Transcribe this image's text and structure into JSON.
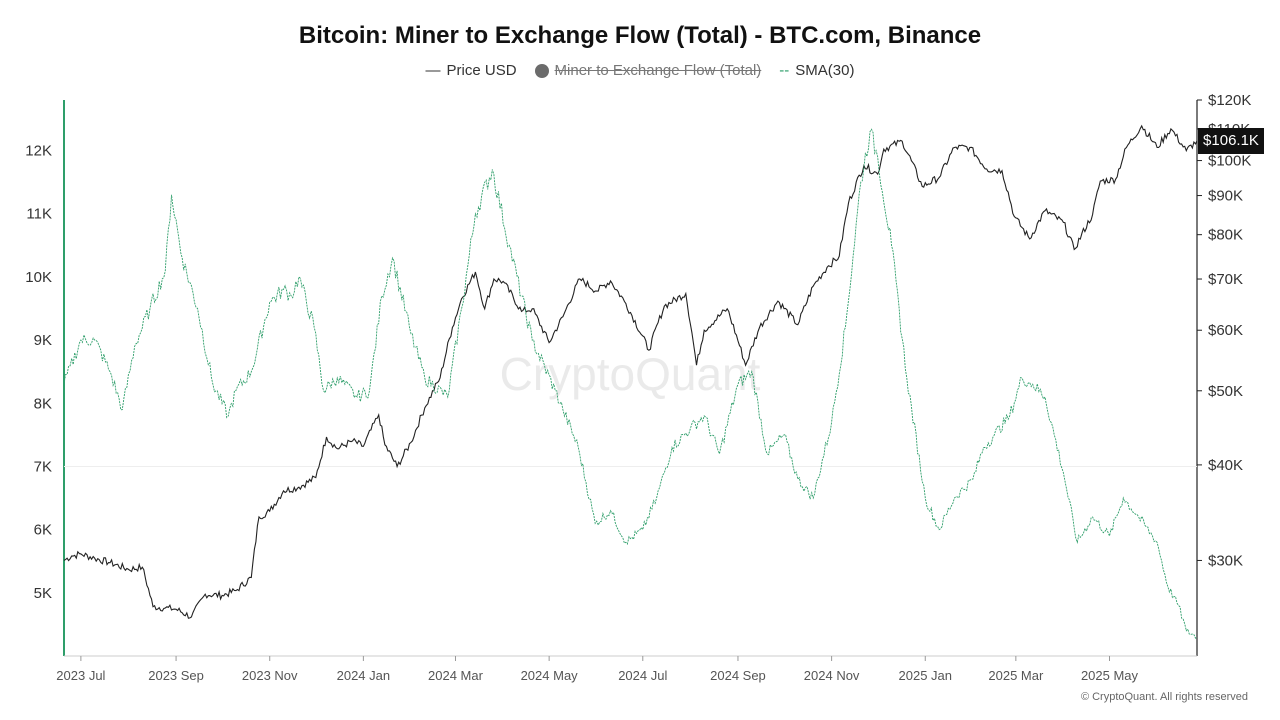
{
  "chart_data": {
    "type": "line",
    "title": "Bitcoin: Miner to Exchange Flow (Total) - BTC.com, Binance",
    "legend": {
      "placement": "top-center",
      "items": [
        {
          "name": "Price USD",
          "marker": "line",
          "color": "#222222",
          "hidden": false
        },
        {
          "name": "Miner to Exchange Flow (Total)",
          "marker": "dot",
          "color": "#6b6b6b",
          "hidden": true
        },
        {
          "name": "SMA(30)",
          "marker": "dash",
          "color": "#2e9e6a",
          "hidden": false
        }
      ]
    },
    "x_axis": {
      "type": "date",
      "range": [
        "2023-06-20",
        "2025-06-27"
      ],
      "tick_labels": [
        "2023 Jul",
        "2023 Sep",
        "2023 Nov",
        "2024 Jan",
        "2024 Mar",
        "2024 May",
        "2024 Jul",
        "2024 Sep",
        "2024 Nov",
        "2025 Jan",
        "2025 Mar",
        "2025 May"
      ],
      "tick_dates": [
        "2023-07-01",
        "2023-09-01",
        "2023-11-01",
        "2024-01-01",
        "2024-03-01",
        "2024-05-01",
        "2024-07-01",
        "2024-09-01",
        "2024-11-01",
        "2025-01-01",
        "2025-03-01",
        "2025-05-01"
      ]
    },
    "y_left": {
      "range": [
        4000,
        12800
      ],
      "ticks": [
        5000,
        6000,
        7000,
        8000,
        9000,
        10000,
        11000,
        12000
      ],
      "tick_labels": [
        "5K",
        "6K",
        "7K",
        "8K",
        "9K",
        "10K",
        "11K",
        "12K"
      ]
    },
    "y_right": {
      "scale": "log",
      "range": [
        22500,
        120000
      ],
      "ticks": [
        30000,
        40000,
        50000,
        60000,
        70000,
        80000,
        90000,
        100000,
        110000,
        120000
      ],
      "tick_labels": [
        "$30K",
        "$40K",
        "$50K",
        "$60K",
        "$70K",
        "$80K",
        "$90K",
        "$100K",
        "$110K",
        "$120K"
      ],
      "last_value_label": "$106.1K"
    },
    "grid": false,
    "series": [
      {
        "name": "Price USD",
        "axis": "right",
        "color": "#222222",
        "x": [
          "2023-06-20",
          "2023-06-25",
          "2023-07-01",
          "2023-07-10",
          "2023-07-20",
          "2023-08-01",
          "2023-08-10",
          "2023-08-17",
          "2023-08-25",
          "2023-09-01",
          "2023-09-11",
          "2023-09-20",
          "2023-10-01",
          "2023-10-10",
          "2023-10-20",
          "2023-10-25",
          "2023-11-01",
          "2023-11-10",
          "2023-11-20",
          "2023-12-01",
          "2023-12-08",
          "2023-12-15",
          "2023-12-25",
          "2024-01-01",
          "2024-01-11",
          "2024-01-15",
          "2024-01-23",
          "2024-02-01",
          "2024-02-10",
          "2024-02-20",
          "2024-02-28",
          "2024-03-05",
          "2024-03-14",
          "2024-03-20",
          "2024-03-26",
          "2024-04-01",
          "2024-04-13",
          "2024-04-20",
          "2024-05-01",
          "2024-05-10",
          "2024-05-21",
          "2024-06-01",
          "2024-06-10",
          "2024-06-20",
          "2024-07-05",
          "2024-07-15",
          "2024-07-29",
          "2024-08-05",
          "2024-08-10",
          "2024-08-25",
          "2024-09-06",
          "2024-09-15",
          "2024-09-27",
          "2024-10-10",
          "2024-10-20",
          "2024-10-29",
          "2024-11-06",
          "2024-11-12",
          "2024-11-22",
          "2024-12-01",
          "2024-12-05",
          "2024-12-17",
          "2024-12-30",
          "2025-01-10",
          "2025-01-20",
          "2025-01-30",
          "2025-02-10",
          "2025-02-20",
          "2025-02-28",
          "2025-03-10",
          "2025-03-20",
          "2025-04-01",
          "2025-04-08",
          "2025-04-20",
          "2025-04-25",
          "2025-05-05",
          "2025-05-12",
          "2025-05-22",
          "2025-06-01",
          "2025-06-10",
          "2025-06-20",
          "2025-06-27"
        ],
        "y": [
          30000,
          30400,
          30600,
          30200,
          29800,
          29200,
          29400,
          26100,
          26000,
          25900,
          25300,
          27100,
          27000,
          27400,
          28500,
          34200,
          34800,
          37000,
          37400,
          38500,
          43500,
          42000,
          43000,
          42300,
          46500,
          42500,
          39800,
          42800,
          47500,
          52000,
          60500,
          66000,
          71500,
          64000,
          70000,
          69500,
          63500,
          64000,
          57800,
          62500,
          70000,
          67500,
          69600,
          65000,
          56500,
          64500,
          67000,
          54000,
          60000,
          64000,
          54000,
          60500,
          65500,
          61000,
          68500,
          72500,
          75000,
          88000,
          98500,
          96000,
          103500,
          106000,
          92500,
          95000,
          104000,
          104000,
          97500,
          97000,
          84500,
          79000,
          86000,
          83000,
          76500,
          85000,
          94000,
          94500,
          104000,
          111000,
          104000,
          110000,
          103000,
          106100
        ]
      },
      {
        "name": "SMA(30)",
        "axis": "left",
        "color": "#2e9e6a",
        "x": [
          "2023-06-20",
          "2023-07-01",
          "2023-07-10",
          "2023-07-20",
          "2023-07-28",
          "2023-08-05",
          "2023-08-15",
          "2023-08-25",
          "2023-08-29",
          "2023-09-05",
          "2023-09-15",
          "2023-09-25",
          "2023-10-05",
          "2023-10-10",
          "2023-10-20",
          "2023-11-01",
          "2023-11-10",
          "2023-11-15",
          "2023-11-20",
          "2023-11-30",
          "2023-12-06",
          "2023-12-15",
          "2023-12-28",
          "2024-01-05",
          "2024-01-13",
          "2024-01-20",
          "2024-02-01",
          "2024-02-10",
          "2024-02-25",
          "2024-03-05",
          "2024-03-14",
          "2024-03-25",
          "2024-04-05",
          "2024-04-20",
          "2024-05-05",
          "2024-05-10",
          "2024-05-20",
          "2024-05-31",
          "2024-06-10",
          "2024-06-20",
          "2024-07-01",
          "2024-07-10",
          "2024-07-20",
          "2024-08-01",
          "2024-08-10",
          "2024-08-20",
          "2024-09-01",
          "2024-09-10",
          "2024-09-20",
          "2024-10-01",
          "2024-10-10",
          "2024-10-20",
          "2024-11-01",
          "2024-11-10",
          "2024-11-20",
          "2024-11-26",
          "2024-12-01",
          "2024-12-10",
          "2024-12-20",
          "2025-01-01",
          "2025-01-10",
          "2025-01-20",
          "2025-02-01",
          "2025-02-08",
          "2025-02-15",
          "2025-02-25",
          "2025-03-05",
          "2025-03-12",
          "2025-03-20",
          "2025-04-01",
          "2025-04-10",
          "2025-04-20",
          "2025-05-01",
          "2025-05-10",
          "2025-05-20",
          "2025-06-01",
          "2025-06-08",
          "2025-06-15",
          "2025-06-20",
          "2025-06-27"
        ],
        "y": [
          8300,
          9000,
          9000,
          8500,
          7900,
          8900,
          9500,
          10100,
          11300,
          10300,
          9500,
          8300,
          7800,
          8200,
          8500,
          9600,
          9800,
          9700,
          10000,
          9200,
          8200,
          8400,
          8100,
          8200,
          9700,
          10300,
          9100,
          8400,
          8100,
          9500,
          11000,
          11700,
          10500,
          9000,
          8200,
          7900,
          7300,
          6100,
          6300,
          5800,
          6000,
          6500,
          7300,
          7600,
          7800,
          7200,
          8300,
          8500,
          7200,
          7500,
          6800,
          6500,
          7700,
          9200,
          11500,
          12300,
          11900,
          10500,
          8400,
          6500,
          6000,
          6500,
          6800,
          7300,
          7500,
          7800,
          8400,
          8300,
          8100,
          6900,
          5800,
          6200,
          5900,
          6500,
          6200,
          5800,
          5100,
          4800,
          4400,
          4300
        ]
      }
    ],
    "watermark": "CryptoQuant"
  },
  "footer": "© CryptoQuant. All rights reserved"
}
